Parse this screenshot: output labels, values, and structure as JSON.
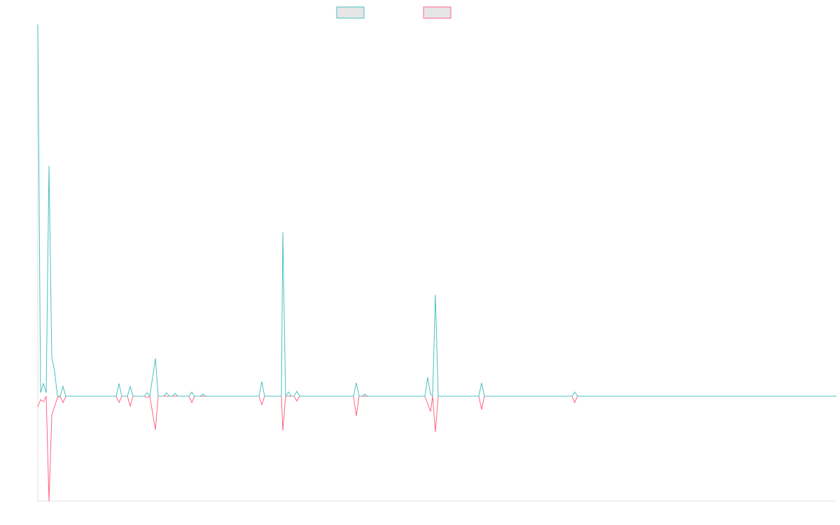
{
  "chart_data": {
    "type": "line",
    "x": [
      0,
      1,
      2,
      3,
      4,
      5,
      6,
      7,
      8,
      9,
      10,
      28,
      29,
      30,
      32,
      33,
      34,
      38,
      39,
      40,
      42,
      43,
      45,
      46,
      47,
      48,
      49,
      50,
      54,
      55,
      56,
      58,
      59,
      60,
      79,
      80,
      81,
      87,
      87.5,
      88.5,
      89.5,
      90.5,
      91.5,
      92.5,
      93.5,
      112.75,
      113.75,
      114.75,
      115.75,
      116.75,
      117.75,
      138.25,
      139.25,
      140.25,
      141,
      142,
      143,
      157.5,
      158.5,
      159.5,
      190.75,
      191.75,
      192.75,
      285.25
    ],
    "xlim": [
      0,
      285.25
    ],
    "ylim": [
      -1.5,
      5.31
    ],
    "series": [
      {
        "color": "#4bc0c0",
        "values": [
          5.31,
          0.05,
          0.18,
          0.05,
          3.29,
          0.55,
          0.36,
          0,
          0,
          0.14,
          0,
          0,
          0.18,
          0,
          0,
          0.14,
          0,
          0,
          0.05,
          0,
          0.54,
          0,
          0,
          0.05,
          0,
          0,
          0.04,
          0,
          0,
          0.06,
          0,
          0,
          0.03,
          0,
          0,
          0.21,
          0,
          0,
          2.34,
          0,
          0.06,
          0,
          0,
          0.07,
          0,
          0,
          0.19,
          0,
          0,
          0.03,
          0,
          0,
          0.27,
          0.03,
          0,
          1.45,
          0,
          0,
          0.19,
          0,
          0,
          0.06,
          0,
          0
        ]
      },
      {
        "color": "#ff6384",
        "values": [
          -0.15,
          -0.05,
          -0.08,
          0,
          -1.5,
          -0.27,
          -0.15,
          -0.02,
          0,
          -0.09,
          0,
          0,
          -0.09,
          0,
          0,
          -0.14,
          0,
          0,
          -0.02,
          0,
          -0.48,
          0,
          0,
          0,
          0,
          0,
          0,
          0,
          0,
          -0.09,
          0,
          0,
          0,
          0,
          0,
          -0.12,
          0,
          0,
          -0.49,
          0,
          0,
          0,
          0,
          -0.07,
          0,
          0,
          -0.28,
          0,
          0,
          0,
          0,
          0,
          -0.11,
          -0.22,
          0,
          -0.51,
          0,
          0,
          -0.19,
          0,
          0,
          -0.09,
          0,
          0
        ]
      }
    ]
  }
}
